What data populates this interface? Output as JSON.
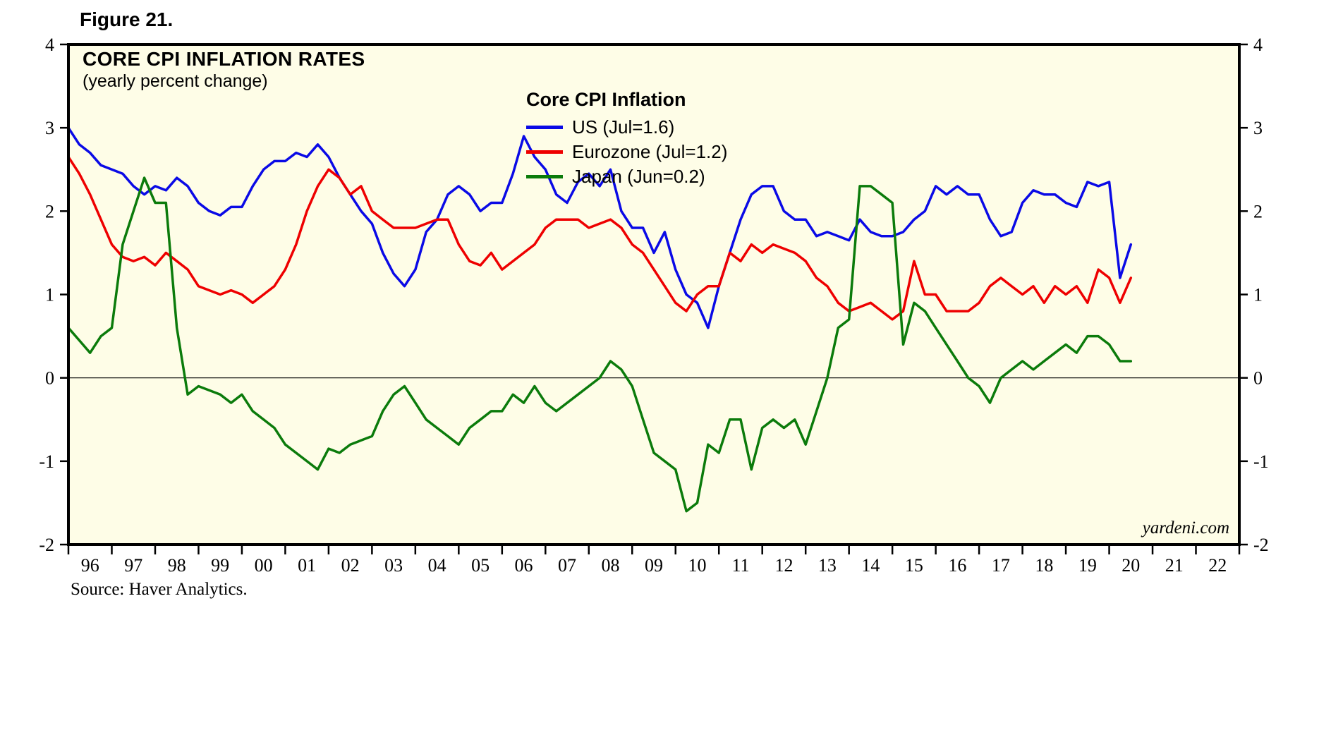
{
  "figure_label": "Figure 21.",
  "source_note": "Source: Haver Analytics.",
  "watermark": "yardeni.com",
  "chart_data": {
    "type": "line",
    "title": "CORE CPI INFLATION RATES",
    "subtitle": "(yearly percent change)",
    "legend_title": "Core CPI Inflation",
    "legend_position": "inside-top-center",
    "background_color": "#FEFDE7",
    "frame_color": "#000000",
    "grid": false,
    "zero_line": true,
    "ylim": [
      -2,
      4
    ],
    "yticks": [
      -2,
      -1,
      0,
      1,
      2,
      3,
      4
    ],
    "xlim": [
      1996,
      2023
    ],
    "xtick_labels": [
      "96",
      "97",
      "98",
      "99",
      "00",
      "01",
      "02",
      "03",
      "04",
      "05",
      "06",
      "07",
      "08",
      "09",
      "10",
      "11",
      "12",
      "13",
      "14",
      "15",
      "16",
      "17",
      "18",
      "19",
      "20",
      "21",
      "22"
    ],
    "x": [
      1996,
      1996.25,
      1996.5,
      1996.75,
      1997,
      1997.25,
      1997.5,
      1997.75,
      1998,
      1998.25,
      1998.5,
      1998.75,
      1999,
      1999.25,
      1999.5,
      1999.75,
      2000,
      2000.25,
      2000.5,
      2000.75,
      2001,
      2001.25,
      2001.5,
      2001.75,
      2002,
      2002.25,
      2002.5,
      2002.75,
      2003,
      2003.25,
      2003.5,
      2003.75,
      2004,
      2004.25,
      2004.5,
      2004.75,
      2005,
      2005.25,
      2005.5,
      2005.75,
      2006,
      2006.25,
      2006.5,
      2006.75,
      2007,
      2007.25,
      2007.5,
      2007.75,
      2008,
      2008.25,
      2008.5,
      2008.75,
      2009,
      2009.25,
      2009.5,
      2009.75,
      2010,
      2010.25,
      2010.5,
      2010.75,
      2011,
      2011.25,
      2011.5,
      2011.75,
      2012,
      2012.25,
      2012.5,
      2012.75,
      2013,
      2013.25,
      2013.5,
      2013.75,
      2014,
      2014.25,
      2014.5,
      2014.75,
      2015,
      2015.25,
      2015.5,
      2015.75,
      2016,
      2016.25,
      2016.5,
      2016.75,
      2017,
      2017.25,
      2017.5,
      2017.75,
      2018,
      2018.25,
      2018.5,
      2018.75,
      2019,
      2019.25,
      2019.5,
      2019.75,
      2020,
      2020.25,
      2020.5
    ],
    "series": [
      {
        "key": "us",
        "name": "US (Jul=1.6)",
        "color": "#0A0AE6",
        "values": [
          3.0,
          2.8,
          2.7,
          2.55,
          2.5,
          2.45,
          2.3,
          2.2,
          2.3,
          2.25,
          2.4,
          2.3,
          2.1,
          2.0,
          1.95,
          2.05,
          2.05,
          2.3,
          2.5,
          2.6,
          2.6,
          2.7,
          2.65,
          2.8,
          2.65,
          2.4,
          2.2,
          2.0,
          1.85,
          1.5,
          1.25,
          1.1,
          1.3,
          1.75,
          1.9,
          2.2,
          2.3,
          2.2,
          2.0,
          2.1,
          2.1,
          2.45,
          2.9,
          2.65,
          2.5,
          2.2,
          2.1,
          2.35,
          2.45,
          2.3,
          2.5,
          2.0,
          1.8,
          1.8,
          1.5,
          1.75,
          1.3,
          1.0,
          0.9,
          0.6,
          1.1,
          1.5,
          1.9,
          2.2,
          2.3,
          2.3,
          2.0,
          1.9,
          1.9,
          1.7,
          1.75,
          1.7,
          1.65,
          1.9,
          1.75,
          1.7,
          1.7,
          1.75,
          1.9,
          2.0,
          2.3,
          2.2,
          2.3,
          2.2,
          2.2,
          1.9,
          1.7,
          1.75,
          2.1,
          2.25,
          2.2,
          2.2,
          2.1,
          2.05,
          2.35,
          2.3,
          2.35,
          1.2,
          1.6
        ]
      },
      {
        "key": "eurozone",
        "name": "Eurozone (Jul=1.2)",
        "color": "#EE0000",
        "values": [
          2.65,
          2.45,
          2.2,
          1.9,
          1.6,
          1.45,
          1.4,
          1.45,
          1.35,
          1.5,
          1.4,
          1.3,
          1.1,
          1.05,
          1.0,
          1.05,
          1.0,
          0.9,
          1.0,
          1.1,
          1.3,
          1.6,
          2.0,
          2.3,
          2.5,
          2.4,
          2.2,
          2.3,
          2.0,
          1.9,
          1.8,
          1.8,
          1.8,
          1.85,
          1.9,
          1.9,
          1.6,
          1.4,
          1.35,
          1.5,
          1.3,
          1.4,
          1.5,
          1.6,
          1.8,
          1.9,
          1.9,
          1.9,
          1.8,
          1.85,
          1.9,
          1.8,
          1.6,
          1.5,
          1.3,
          1.1,
          0.9,
          0.8,
          1.0,
          1.1,
          1.1,
          1.5,
          1.4,
          1.6,
          1.5,
          1.6,
          1.55,
          1.5,
          1.4,
          1.2,
          1.1,
          0.9,
          0.8,
          0.85,
          0.9,
          0.8,
          0.7,
          0.8,
          1.4,
          1.0,
          1.0,
          0.8,
          0.8,
          0.8,
          0.9,
          1.1,
          1.2,
          1.1,
          1.0,
          1.1,
          0.9,
          1.1,
          1.0,
          1.1,
          0.9,
          1.3,
          1.2,
          0.9,
          1.2
        ]
      },
      {
        "key": "japan",
        "name": "Japan (Jun=0.2)",
        "color": "#0B7B0B",
        "values": [
          0.6,
          0.45,
          0.3,
          0.5,
          0.6,
          1.6,
          2.0,
          2.4,
          2.1,
          2.1,
          0.6,
          -0.2,
          -0.1,
          -0.15,
          -0.2,
          -0.3,
          -0.2,
          -0.4,
          -0.5,
          -0.6,
          -0.8,
          -0.9,
          -1.0,
          -1.1,
          -0.85,
          -0.9,
          -0.8,
          -0.75,
          -0.7,
          -0.4,
          -0.2,
          -0.1,
          -0.3,
          -0.5,
          -0.6,
          -0.7,
          -0.8,
          -0.6,
          -0.5,
          -0.4,
          -0.4,
          -0.2,
          -0.3,
          -0.1,
          -0.3,
          -0.4,
          -0.3,
          -0.2,
          -0.1,
          0.0,
          0.2,
          0.1,
          -0.1,
          -0.5,
          -0.9,
          -1.0,
          -1.1,
          -1.6,
          -1.5,
          -0.8,
          -0.9,
          -0.5,
          -0.5,
          -1.1,
          -0.6,
          -0.5,
          -0.6,
          -0.5,
          -0.8,
          -0.4,
          0.0,
          0.6,
          0.7,
          2.3,
          2.3,
          2.2,
          2.1,
          0.4,
          0.9,
          0.8,
          0.6,
          0.4,
          0.2,
          0.0,
          -0.1,
          -0.3,
          0.0,
          0.1,
          0.2,
          0.1,
          0.2,
          0.3,
          0.4,
          0.3,
          0.5,
          0.5,
          0.4,
          0.2,
          0.2
        ]
      }
    ]
  }
}
